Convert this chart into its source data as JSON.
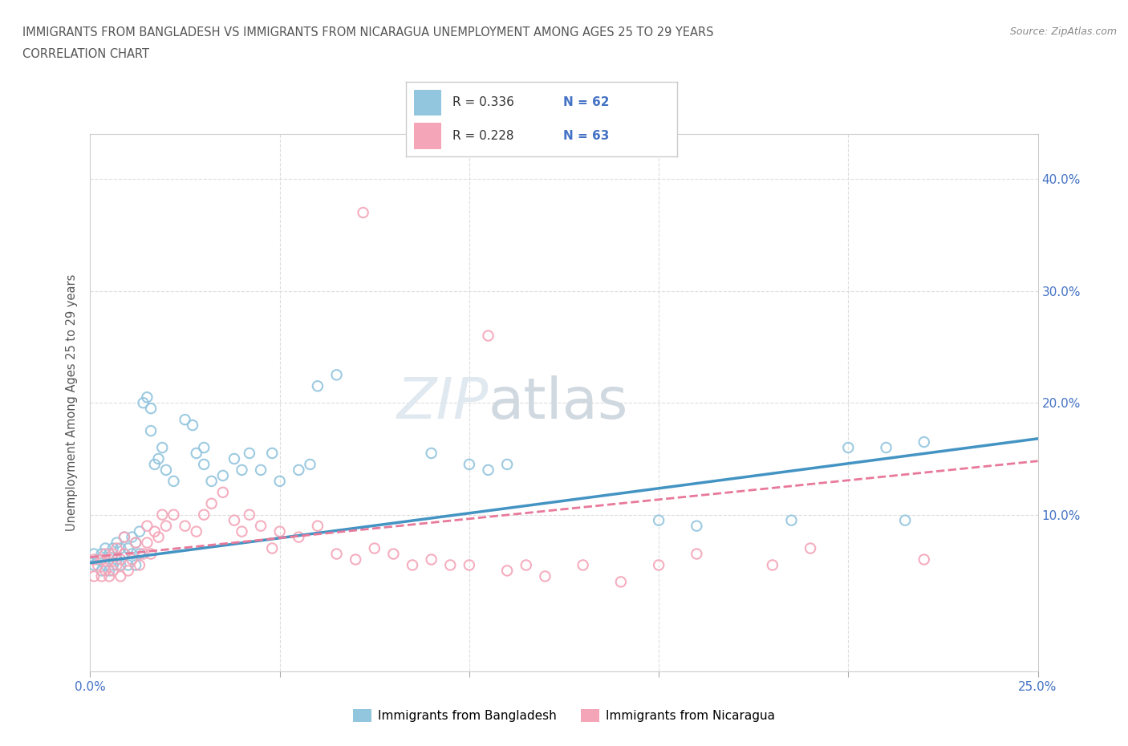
{
  "title_line1": "IMMIGRANTS FROM BANGLADESH VS IMMIGRANTS FROM NICARAGUA UNEMPLOYMENT AMONG AGES 25 TO 29 YEARS",
  "title_line2": "CORRELATION CHART",
  "source_text": "Source: ZipAtlas.com",
  "ylabel": "Unemployment Among Ages 25 to 29 years",
  "xlim": [
    0.0,
    0.25
  ],
  "ylim": [
    -0.04,
    0.44
  ],
  "xtick_positions": [
    0.0,
    0.05,
    0.1,
    0.15,
    0.2,
    0.25
  ],
  "xtick_labels": [
    "0.0%",
    "",
    "",
    "",
    "",
    "25.0%"
  ],
  "ytick_positions": [
    0.0,
    0.1,
    0.2,
    0.3,
    0.4
  ],
  "ytick_labels_right": [
    "",
    "10.0%",
    "20.0%",
    "30.0%",
    "40.0%"
  ],
  "color_bangladesh": "#92C5DE",
  "color_nicaragua": "#F4A5B8",
  "color_line_bangladesh": "#4393C3",
  "color_line_nicaragua": "#E8799A",
  "background_color": "#FFFFFF",
  "grid_color": "#DDDDDD",
  "bd_x": [
    0.001,
    0.001,
    0.002,
    0.003,
    0.003,
    0.004,
    0.004,
    0.005,
    0.005,
    0.006,
    0.006,
    0.007,
    0.007,
    0.008,
    0.008,
    0.009,
    0.009,
    0.01,
    0.01,
    0.011,
    0.011,
    0.012,
    0.012,
    0.013,
    0.013,
    0.014,
    0.015,
    0.016,
    0.016,
    0.017,
    0.018,
    0.019,
    0.02,
    0.022,
    0.025,
    0.027,
    0.028,
    0.03,
    0.03,
    0.032,
    0.035,
    0.038,
    0.04,
    0.042,
    0.045,
    0.048,
    0.05,
    0.055,
    0.058,
    0.06,
    0.065,
    0.09,
    0.1,
    0.105,
    0.11,
    0.15,
    0.16,
    0.185,
    0.2,
    0.21,
    0.215,
    0.22
  ],
  "bd_y": [
    0.055,
    0.065,
    0.06,
    0.05,
    0.065,
    0.055,
    0.07,
    0.05,
    0.065,
    0.055,
    0.07,
    0.06,
    0.075,
    0.055,
    0.07,
    0.065,
    0.08,
    0.055,
    0.07,
    0.065,
    0.08,
    0.055,
    0.075,
    0.065,
    0.085,
    0.2,
    0.205,
    0.195,
    0.175,
    0.145,
    0.15,
    0.16,
    0.14,
    0.13,
    0.185,
    0.18,
    0.155,
    0.145,
    0.16,
    0.13,
    0.135,
    0.15,
    0.14,
    0.155,
    0.14,
    0.155,
    0.13,
    0.14,
    0.145,
    0.215,
    0.225,
    0.155,
    0.145,
    0.14,
    0.145,
    0.095,
    0.09,
    0.095,
    0.16,
    0.16,
    0.095,
    0.165
  ],
  "ni_x": [
    0.001,
    0.001,
    0.002,
    0.003,
    0.003,
    0.004,
    0.004,
    0.005,
    0.005,
    0.006,
    0.006,
    0.007,
    0.007,
    0.008,
    0.008,
    0.009,
    0.009,
    0.01,
    0.011,
    0.012,
    0.013,
    0.014,
    0.015,
    0.015,
    0.016,
    0.017,
    0.018,
    0.019,
    0.02,
    0.022,
    0.025,
    0.028,
    0.03,
    0.032,
    0.035,
    0.038,
    0.04,
    0.042,
    0.045,
    0.048,
    0.05,
    0.055,
    0.06,
    0.065,
    0.07,
    0.072,
    0.075,
    0.08,
    0.085,
    0.09,
    0.095,
    0.1,
    0.105,
    0.11,
    0.115,
    0.12,
    0.13,
    0.14,
    0.15,
    0.16,
    0.18,
    0.19,
    0.22
  ],
  "ni_y": [
    0.045,
    0.06,
    0.055,
    0.045,
    0.06,
    0.05,
    0.065,
    0.045,
    0.06,
    0.05,
    0.065,
    0.055,
    0.07,
    0.045,
    0.06,
    0.065,
    0.08,
    0.05,
    0.06,
    0.075,
    0.055,
    0.065,
    0.075,
    0.09,
    0.065,
    0.085,
    0.08,
    0.1,
    0.09,
    0.1,
    0.09,
    0.085,
    0.1,
    0.11,
    0.12,
    0.095,
    0.085,
    0.1,
    0.09,
    0.07,
    0.085,
    0.08,
    0.09,
    0.065,
    0.06,
    0.37,
    0.07,
    0.065,
    0.055,
    0.06,
    0.055,
    0.055,
    0.26,
    0.05,
    0.055,
    0.045,
    0.055,
    0.04,
    0.055,
    0.065,
    0.055,
    0.07,
    0.06
  ],
  "line_bd_x0": 0.0,
  "line_bd_x1": 0.25,
  "line_bd_y0": 0.057,
  "line_bd_y1": 0.168,
  "line_ni_x0": 0.0,
  "line_ni_x1": 0.25,
  "line_ni_y0": 0.062,
  "line_ni_y1": 0.148
}
